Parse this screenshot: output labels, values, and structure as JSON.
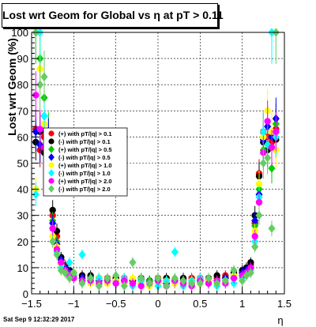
{
  "chart_data": {
    "type": "scatter",
    "title": "Lost wrt Geom for Global vs  η at pT > 0.11",
    "xlabel": "η",
    "ylabel": "Lost wrt Geom (%)",
    "xlim": [
      -1.5,
      1.5
    ],
    "ylim": [
      0,
      100
    ],
    "x_ticks": [
      "−1.5",
      "−1",
      "−0.5",
      "0",
      "0.5",
      "1",
      "1.5"
    ],
    "y_ticks": [
      "0",
      "10",
      "20",
      "30",
      "40",
      "50",
      "60",
      "70",
      "80",
      "90",
      "100"
    ],
    "grid": true,
    "legend_position": "center-left",
    "series": [
      {
        "name": "(+) with pT/|q| > 0.1",
        "color": "#ff0000",
        "marker": "circle",
        "points": [
          [
            -1.45,
            63
          ],
          [
            -1.4,
            55
          ],
          [
            -1.35,
            60
          ],
          [
            -1.3,
            58
          ],
          [
            -1.25,
            30
          ],
          [
            -1.2,
            22
          ],
          [
            -1.15,
            13
          ],
          [
            -1.1,
            11
          ],
          [
            -1.05,
            9
          ],
          [
            -1.0,
            8
          ],
          [
            -0.9,
            7
          ],
          [
            -0.8,
            6
          ],
          [
            -0.7,
            6
          ],
          [
            -0.6,
            6
          ],
          [
            -0.5,
            5
          ],
          [
            -0.4,
            6
          ],
          [
            -0.3,
            5
          ],
          [
            -0.2,
            5
          ],
          [
            -0.1,
            5
          ],
          [
            0.0,
            6
          ],
          [
            0.1,
            5
          ],
          [
            0.2,
            5
          ],
          [
            0.3,
            5
          ],
          [
            0.4,
            6
          ],
          [
            0.5,
            6
          ],
          [
            0.6,
            5
          ],
          [
            0.7,
            6
          ],
          [
            0.8,
            7
          ],
          [
            0.9,
            7
          ],
          [
            1.0,
            8
          ],
          [
            1.05,
            9
          ],
          [
            1.1,
            11
          ],
          [
            1.15,
            27
          ],
          [
            1.2,
            46
          ],
          [
            1.25,
            62
          ],
          [
            1.3,
            60
          ],
          [
            1.35,
            58
          ],
          [
            1.4,
            63
          ]
        ]
      },
      {
        "name": "(-) with pT/|q| > 0.1",
        "color": "#000000",
        "marker": "circle",
        "points": [
          [
            -1.45,
            58
          ],
          [
            -1.4,
            62
          ],
          [
            -1.35,
            54
          ],
          [
            -1.3,
            57
          ],
          [
            -1.25,
            32
          ],
          [
            -1.2,
            24
          ],
          [
            -1.15,
            14
          ],
          [
            -1.1,
            10
          ],
          [
            -1.05,
            9
          ],
          [
            -1.0,
            8
          ],
          [
            -0.9,
            7
          ],
          [
            -0.8,
            7
          ],
          [
            -0.7,
            6
          ],
          [
            -0.6,
            5
          ],
          [
            -0.5,
            6
          ],
          [
            -0.4,
            5
          ],
          [
            -0.3,
            5
          ],
          [
            -0.2,
            6
          ],
          [
            -0.1,
            5
          ],
          [
            0.0,
            5
          ],
          [
            0.1,
            6
          ],
          [
            0.2,
            5
          ],
          [
            0.3,
            6
          ],
          [
            0.4,
            5
          ],
          [
            0.5,
            5
          ],
          [
            0.6,
            6
          ],
          [
            0.7,
            7
          ],
          [
            0.8,
            6
          ],
          [
            0.9,
            8
          ],
          [
            1.0,
            9
          ],
          [
            1.05,
            10
          ],
          [
            1.1,
            12
          ],
          [
            1.15,
            30
          ],
          [
            1.2,
            45
          ],
          [
            1.25,
            58
          ],
          [
            1.3,
            55
          ],
          [
            1.35,
            62
          ],
          [
            1.4,
            59
          ]
        ]
      },
      {
        "name": "(+) with pT/|q| > 0.5",
        "color": "#00cc00",
        "marker": "diamond",
        "points": [
          [
            -1.45,
            100
          ],
          [
            -1.4,
            90
          ],
          [
            -1.35,
            75
          ],
          [
            -1.3,
            62
          ],
          [
            -1.25,
            28
          ],
          [
            -1.2,
            20
          ],
          [
            -1.15,
            12
          ],
          [
            -1.1,
            9
          ],
          [
            -1.05,
            8
          ],
          [
            -1.0,
            7
          ],
          [
            -0.9,
            6
          ],
          [
            -0.8,
            5
          ],
          [
            -0.7,
            5
          ],
          [
            -0.6,
            5
          ],
          [
            -0.5,
            4
          ],
          [
            -0.4,
            5
          ],
          [
            -0.3,
            4
          ],
          [
            -0.2,
            4
          ],
          [
            -0.1,
            5
          ],
          [
            0.0,
            4
          ],
          [
            0.1,
            4
          ],
          [
            0.2,
            5
          ],
          [
            0.3,
            4
          ],
          [
            0.4,
            5
          ],
          [
            0.5,
            5
          ],
          [
            0.6,
            4
          ],
          [
            0.7,
            5
          ],
          [
            0.8,
            6
          ],
          [
            0.9,
            6
          ],
          [
            1.0,
            7
          ],
          [
            1.05,
            8
          ],
          [
            1.1,
            10
          ],
          [
            1.15,
            26
          ],
          [
            1.2,
            40
          ],
          [
            1.25,
            55
          ],
          [
            1.3,
            57
          ],
          [
            1.35,
            48
          ],
          [
            1.4,
            65
          ]
        ]
      },
      {
        "name": "(-) with pT/|q| > 0.5",
        "color": "#0000ff",
        "marker": "diamond",
        "points": [
          [
            -1.45,
            62
          ],
          [
            -1.4,
            57
          ],
          [
            -1.35,
            68
          ],
          [
            -1.3,
            60
          ],
          [
            -1.25,
            27
          ],
          [
            -1.2,
            19
          ],
          [
            -1.15,
            13
          ],
          [
            -1.1,
            10
          ],
          [
            -1.05,
            8
          ],
          [
            -1.0,
            7
          ],
          [
            -0.9,
            6
          ],
          [
            -0.8,
            6
          ],
          [
            -0.7,
            5
          ],
          [
            -0.6,
            5
          ],
          [
            -0.5,
            5
          ],
          [
            -0.4,
            4
          ],
          [
            -0.3,
            5
          ],
          [
            -0.2,
            4
          ],
          [
            -0.1,
            4
          ],
          [
            0.0,
            5
          ],
          [
            0.1,
            4
          ],
          [
            0.2,
            4
          ],
          [
            0.3,
            5
          ],
          [
            0.4,
            4
          ],
          [
            0.5,
            5
          ],
          [
            0.6,
            5
          ],
          [
            0.7,
            5
          ],
          [
            0.8,
            6
          ],
          [
            0.9,
            6
          ],
          [
            1.0,
            8
          ],
          [
            1.05,
            9
          ],
          [
            1.1,
            10
          ],
          [
            1.15,
            28
          ],
          [
            1.2,
            38
          ],
          [
            1.25,
            59
          ],
          [
            1.3,
            64
          ],
          [
            1.35,
            60
          ],
          [
            1.4,
            67
          ]
        ]
      },
      {
        "name": "(+) with pT/|q| > 1.0",
        "color": "#ffff00",
        "marker": "circle",
        "points": [
          [
            -1.45,
            40
          ],
          [
            -1.4,
            86
          ],
          [
            -1.35,
            65
          ],
          [
            -1.3,
            52
          ],
          [
            -1.25,
            22
          ],
          [
            -1.2,
            18
          ],
          [
            -1.15,
            11
          ],
          [
            -1.1,
            8
          ],
          [
            -1.05,
            7
          ],
          [
            -1.0,
            8
          ],
          [
            -0.9,
            5
          ],
          [
            -0.8,
            4
          ],
          [
            -0.7,
            6
          ],
          [
            -0.6,
            4
          ],
          [
            -0.5,
            5
          ],
          [
            -0.4,
            4
          ],
          [
            -0.3,
            6
          ],
          [
            -0.2,
            4
          ],
          [
            -0.1,
            3
          ],
          [
            0.0,
            4
          ],
          [
            0.1,
            5
          ],
          [
            0.2,
            4
          ],
          [
            0.3,
            3
          ],
          [
            0.4,
            5
          ],
          [
            0.5,
            4
          ],
          [
            0.6,
            5
          ],
          [
            0.7,
            4
          ],
          [
            0.8,
            5
          ],
          [
            0.9,
            7
          ],
          [
            1.0,
            6
          ],
          [
            1.05,
            8
          ],
          [
            1.1,
            9
          ],
          [
            1.15,
            24
          ],
          [
            1.2,
            42
          ],
          [
            1.25,
            60
          ],
          [
            1.3,
            70
          ],
          [
            1.35,
            62
          ],
          [
            1.4,
            55
          ]
        ]
      },
      {
        "name": "(-) with pT/|q| > 1.0",
        "color": "#00ffff",
        "marker": "diamond",
        "points": [
          [
            -1.45,
            38
          ],
          [
            -1.4,
            100
          ],
          [
            -1.35,
            68
          ],
          [
            -1.3,
            45
          ],
          [
            -1.25,
            25
          ],
          [
            -1.2,
            16
          ],
          [
            -1.15,
            10
          ],
          [
            -1.1,
            8
          ],
          [
            -1.05,
            12
          ],
          [
            -1.0,
            7
          ],
          [
            -0.9,
            15
          ],
          [
            -0.8,
            5
          ],
          [
            -0.7,
            6
          ],
          [
            -0.6,
            5
          ],
          [
            -0.5,
            4
          ],
          [
            -0.4,
            6
          ],
          [
            -0.3,
            3
          ],
          [
            -0.2,
            5
          ],
          [
            -0.1,
            4
          ],
          [
            0.0,
            3
          ],
          [
            0.1,
            5
          ],
          [
            0.2,
            16
          ],
          [
            0.3,
            3
          ],
          [
            0.4,
            5
          ],
          [
            0.5,
            6
          ],
          [
            0.6,
            4
          ],
          [
            0.7,
            3
          ],
          [
            0.8,
            5
          ],
          [
            0.9,
            4
          ],
          [
            1.0,
            6
          ],
          [
            1.05,
            7
          ],
          [
            1.1,
            9
          ],
          [
            1.15,
            20
          ],
          [
            1.2,
            37
          ],
          [
            1.25,
            62
          ],
          [
            1.3,
            57
          ],
          [
            1.35,
            100
          ],
          [
            1.4,
            60
          ]
        ]
      },
      {
        "name": "(+) with pT/|q| > 2.0",
        "color": "#ff00ff",
        "marker": "circle",
        "points": [
          [
            -1.45,
            76
          ],
          [
            -1.4,
            63
          ],
          [
            -1.35,
            56
          ],
          [
            -1.3,
            50
          ],
          [
            -1.25,
            25
          ],
          [
            -1.2,
            17
          ],
          [
            -1.15,
            12
          ],
          [
            -1.1,
            9
          ],
          [
            -1.05,
            7
          ],
          [
            -1.0,
            6
          ],
          [
            -0.9,
            5
          ],
          [
            -0.8,
            5
          ],
          [
            -0.7,
            4
          ],
          [
            -0.6,
            5
          ],
          [
            -0.5,
            4
          ],
          [
            -0.4,
            5
          ],
          [
            -0.3,
            4
          ],
          [
            -0.2,
            3
          ],
          [
            -0.1,
            4
          ],
          [
            0.0,
            5
          ],
          [
            0.1,
            3
          ],
          [
            0.2,
            5
          ],
          [
            0.3,
            4
          ],
          [
            0.4,
            3
          ],
          [
            0.5,
            5
          ],
          [
            0.6,
            4
          ],
          [
            0.7,
            5
          ],
          [
            0.8,
            4
          ],
          [
            0.9,
            6
          ],
          [
            1.0,
            7
          ],
          [
            1.05,
            8
          ],
          [
            1.1,
            10
          ],
          [
            1.15,
            22
          ],
          [
            1.2,
            35
          ],
          [
            1.25,
            54
          ],
          [
            1.3,
            66
          ],
          [
            1.35,
            56
          ],
          [
            1.4,
            62
          ]
        ]
      },
      {
        "name": "(-) with pT/|q| > 2.0",
        "color": "#66cc66",
        "marker": "diamond",
        "points": [
          [
            -1.45,
            100
          ],
          [
            -1.4,
            80
          ],
          [
            -1.35,
            83
          ],
          [
            -1.3,
            48
          ],
          [
            -1.25,
            20
          ],
          [
            -1.2,
            15
          ],
          [
            -1.15,
            9
          ],
          [
            -1.1,
            8
          ],
          [
            -1.05,
            6
          ],
          [
            -1.0,
            8
          ],
          [
            -0.9,
            4
          ],
          [
            -0.8,
            6
          ],
          [
            -0.7,
            3
          ],
          [
            -0.6,
            6
          ],
          [
            -0.5,
            7
          ],
          [
            -0.4,
            3
          ],
          [
            -0.3,
            12
          ],
          [
            -0.2,
            6
          ],
          [
            -0.1,
            4
          ],
          [
            0.0,
            6
          ],
          [
            0.1,
            3
          ],
          [
            0.2,
            6
          ],
          [
            0.3,
            5
          ],
          [
            0.4,
            4
          ],
          [
            0.5,
            4
          ],
          [
            0.6,
            6
          ],
          [
            0.7,
            4
          ],
          [
            0.8,
            5
          ],
          [
            0.9,
            9
          ],
          [
            1.0,
            5
          ],
          [
            1.05,
            7
          ],
          [
            1.1,
            8
          ],
          [
            1.15,
            18
          ],
          [
            1.2,
            30
          ],
          [
            1.25,
            50
          ],
          [
            1.3,
            52
          ],
          [
            1.35,
            25
          ],
          [
            1.4,
            100
          ]
        ]
      }
    ]
  },
  "timestamp": "Sat Sep  9 12:32:29 2017"
}
